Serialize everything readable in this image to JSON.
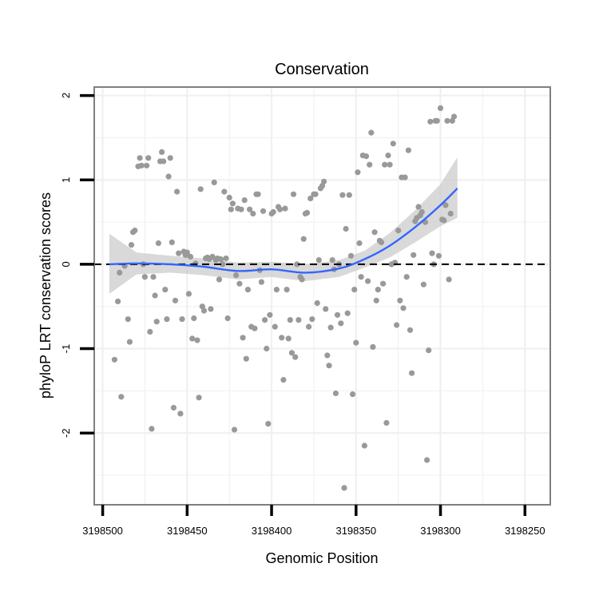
{
  "chart_data": {
    "type": "scatter",
    "title": "Conservation",
    "xlabel": "Genomic Position",
    "ylabel": "phyloP LRT conservation scores",
    "x_reversed": true,
    "xlim": [
      3198505,
      3198235
    ],
    "ylim": [
      -2.85,
      2.1
    ],
    "x_ticks": [
      3198500,
      3198450,
      3198400,
      3198350,
      3198300,
      3198250
    ],
    "x_tick_labels": [
      "3198500",
      "3198450",
      "3198400",
      "3198350",
      "3198300",
      "3198250"
    ],
    "y_ticks": [
      -2,
      -1,
      0,
      1,
      2
    ],
    "y_tick_labels": [
      "-2",
      "-1",
      "0",
      "1",
      "2"
    ],
    "grid": true,
    "legend": "none",
    "reference_line": {
      "y": 0,
      "style": "dashed",
      "color": "#000000"
    },
    "colors": {
      "points": "#999999",
      "smooth": "#3366ff",
      "band": "#cccccc",
      "panel_border": "#7f7f7f",
      "grid": "#f0f0f0"
    },
    "points": [
      [
        3198493,
        -1.13
      ],
      [
        3198491,
        -0.44
      ],
      [
        3198490,
        -0.1
      ],
      [
        3198489,
        -1.57
      ],
      [
        3198487,
        -0.02
      ],
      [
        3198485,
        -0.65
      ],
      [
        3198484,
        -0.92
      ],
      [
        3198483,
        0.23
      ],
      [
        3198482,
        0.38
      ],
      [
        3198481,
        0.4
      ],
      [
        3198479,
        1.16
      ],
      [
        3198478,
        1.26
      ],
      [
        3198477,
        1.17
      ],
      [
        3198476,
        0.0
      ],
      [
        3198475,
        -0.15
      ],
      [
        3198474,
        1.17
      ],
      [
        3198473,
        1.26
      ],
      [
        3198472,
        -0.8
      ],
      [
        3198471,
        -1.95
      ],
      [
        3198470,
        -0.15
      ],
      [
        3198469,
        -0.37
      ],
      [
        3198468,
        -0.68
      ],
      [
        3198467,
        0.25
      ],
      [
        3198466,
        1.22
      ],
      [
        3198465,
        1.33
      ],
      [
        3198464,
        1.22
      ],
      [
        3198463,
        -0.3
      ],
      [
        3198462,
        -0.65
      ],
      [
        3198461,
        1.04
      ],
      [
        3198460,
        1.26
      ],
      [
        3198459,
        0.26
      ],
      [
        3198458,
        -1.7
      ],
      [
        3198457,
        -0.43
      ],
      [
        3198456,
        0.86
      ],
      [
        3198455,
        0.13
      ],
      [
        3198454,
        -1.77
      ],
      [
        3198453,
        -0.65
      ],
      [
        3198452,
        0.15
      ],
      [
        3198451,
        0.11
      ],
      [
        3198450,
        0.14
      ],
      [
        3198449,
        -0.35
      ],
      [
        3198448,
        0.09
      ],
      [
        3198447,
        -0.88
      ],
      [
        3198446,
        -0.64
      ],
      [
        3198445,
        0.01
      ],
      [
        3198444,
        -0.9
      ],
      [
        3198443,
        -1.58
      ],
      [
        3198442,
        0.89
      ],
      [
        3198441,
        -0.5
      ],
      [
        3198440,
        -0.55
      ],
      [
        3198439,
        0.07
      ],
      [
        3198438,
        0.08
      ],
      [
        3198437,
        0.06
      ],
      [
        3198436,
        -0.53
      ],
      [
        3198435,
        0.09
      ],
      [
        3198434,
        0.97
      ],
      [
        3198433,
        0.05
      ],
      [
        3198432,
        0.07
      ],
      [
        3198431,
        -0.18
      ],
      [
        3198430,
        0.06
      ],
      [
        3198429,
        0.0
      ],
      [
        3198428,
        0.86
      ],
      [
        3198427,
        0.07
      ],
      [
        3198426,
        -0.64
      ],
      [
        3198425,
        0.79
      ],
      [
        3198424,
        0.65
      ],
      [
        3198423,
        0.72
      ],
      [
        3198422,
        -1.96
      ],
      [
        3198421,
        -0.13
      ],
      [
        3198420,
        0.66
      ],
      [
        3198419,
        -0.23
      ],
      [
        3198418,
        0.65
      ],
      [
        3198417,
        -0.87
      ],
      [
        3198416,
        0.76
      ],
      [
        3198415,
        -1.12
      ],
      [
        3198414,
        -0.3
      ],
      [
        3198413,
        0.65
      ],
      [
        3198412,
        -0.74
      ],
      [
        3198411,
        0.6
      ],
      [
        3198410,
        -0.76
      ],
      [
        3198409,
        0.83
      ],
      [
        3198408,
        0.83
      ],
      [
        3198407,
        -0.07
      ],
      [
        3198406,
        -0.21
      ],
      [
        3198405,
        0.63
      ],
      [
        3198404,
        -0.66
      ],
      [
        3198403,
        -1.0
      ],
      [
        3198402,
        -1.89
      ],
      [
        3198401,
        -0.6
      ],
      [
        3198400,
        0.6
      ],
      [
        3198399,
        0.62
      ],
      [
        3198398,
        -0.74
      ],
      [
        3198397,
        -0.3
      ],
      [
        3198396,
        0.68
      ],
      [
        3198395,
        0.65
      ],
      [
        3198394,
        -0.87
      ],
      [
        3198393,
        -1.37
      ],
      [
        3198392,
        0.66
      ],
      [
        3198391,
        -0.3
      ],
      [
        3198390,
        -0.88
      ],
      [
        3198389,
        -0.66
      ],
      [
        3198388,
        -1.05
      ],
      [
        3198387,
        0.83
      ],
      [
        3198386,
        -1.1
      ],
      [
        3198385,
        0.0
      ],
      [
        3198384,
        -0.66
      ],
      [
        3198383,
        -0.15
      ],
      [
        3198382,
        -0.18
      ],
      [
        3198381,
        0.3
      ],
      [
        3198380,
        0.6
      ],
      [
        3198379,
        0.61
      ],
      [
        3198378,
        -0.74
      ],
      [
        3198377,
        0.78
      ],
      [
        3198376,
        -0.65
      ],
      [
        3198375,
        0.83
      ],
      [
        3198374,
        0.83
      ],
      [
        3198373,
        -0.46
      ],
      [
        3198372,
        0.05
      ],
      [
        3198371,
        0.9
      ],
      [
        3198370,
        0.93
      ],
      [
        3198369,
        0.98
      ],
      [
        3198368,
        -0.53
      ],
      [
        3198367,
        -1.08
      ],
      [
        3198366,
        -1.2
      ],
      [
        3198365,
        -0.75
      ],
      [
        3198364,
        0.05
      ],
      [
        3198363,
        -0.06
      ],
      [
        3198362,
        -1.53
      ],
      [
        3198361,
        -0.6
      ],
      [
        3198360,
        0.0
      ],
      [
        3198359,
        -0.7
      ],
      [
        3198358,
        0.82
      ],
      [
        3198357,
        -2.65
      ],
      [
        3198356,
        0.42
      ],
      [
        3198355,
        -0.58
      ],
      [
        3198354,
        0.82
      ],
      [
        3198353,
        0.1
      ],
      [
        3198352,
        -1.54
      ],
      [
        3198351,
        -0.3
      ],
      [
        3198350,
        -0.93
      ],
      [
        3198349,
        1.09
      ],
      [
        3198348,
        0.25
      ],
      [
        3198347,
        -0.15
      ],
      [
        3198346,
        1.29
      ],
      [
        3198345,
        -2.15
      ],
      [
        3198344,
        1.28
      ],
      [
        3198343,
        -0.2
      ],
      [
        3198342,
        1.18
      ],
      [
        3198341,
        1.56
      ],
      [
        3198340,
        -0.98
      ],
      [
        3198339,
        0.38
      ],
      [
        3198338,
        -0.43
      ],
      [
        3198337,
        -0.3
      ],
      [
        3198336,
        0.28
      ],
      [
        3198335,
        0.26
      ],
      [
        3198334,
        -0.23
      ],
      [
        3198333,
        1.18
      ],
      [
        3198332,
        -1.88
      ],
      [
        3198331,
        1.29
      ],
      [
        3198330,
        1.18
      ],
      [
        3198329,
        0.0
      ],
      [
        3198328,
        1.43
      ],
      [
        3198327,
        0.02
      ],
      [
        3198326,
        -0.72
      ],
      [
        3198325,
        0.4
      ],
      [
        3198324,
        -0.43
      ],
      [
        3198323,
        1.03
      ],
      [
        3198322,
        -0.52
      ],
      [
        3198321,
        1.03
      ],
      [
        3198320,
        -0.15
      ],
      [
        3198319,
        1.35
      ],
      [
        3198318,
        -0.78
      ],
      [
        3198317,
        -1.29
      ],
      [
        3198316,
        0.11
      ],
      [
        3198315,
        0.51
      ],
      [
        3198314,
        0.55
      ],
      [
        3198313,
        0.68
      ],
      [
        3198312,
        0.58
      ],
      [
        3198311,
        0.62
      ],
      [
        3198310,
        -0.24
      ],
      [
        3198309,
        0.5
      ],
      [
        3198308,
        -2.32
      ],
      [
        3198307,
        -1.02
      ],
      [
        3198306,
        1.69
      ],
      [
        3198305,
        0.13
      ],
      [
        3198304,
        0.0
      ],
      [
        3198303,
        1.7
      ],
      [
        3198302,
        1.7
      ],
      [
        3198301,
        0.1
      ],
      [
        3198300,
        1.85
      ],
      [
        3198299,
        0.53
      ],
      [
        3198298,
        0.52
      ],
      [
        3198297,
        0.7
      ],
      [
        3198296,
        1.7
      ],
      [
        3198295,
        -0.18
      ],
      [
        3198294,
        0.6
      ],
      [
        3198293,
        1.7
      ],
      [
        3198292,
        1.75
      ]
    ],
    "smooth_curve": {
      "x": [
        3198496,
        3198480,
        3198460,
        3198440,
        3198420,
        3198400,
        3198380,
        3198360,
        3198345,
        3198330,
        3198315,
        3198300,
        3198290
      ],
      "y": [
        0.0,
        0.01,
        0.0,
        -0.03,
        -0.08,
        -0.06,
        -0.1,
        -0.05,
        0.06,
        0.22,
        0.44,
        0.7,
        0.9
      ]
    },
    "confidence_band": {
      "x": [
        3198496,
        3198480,
        3198460,
        3198440,
        3198420,
        3198400,
        3198380,
        3198360,
        3198345,
        3198330,
        3198315,
        3198300,
        3198290
      ],
      "lower": [
        -0.35,
        -0.12,
        -0.1,
        -0.13,
        -0.18,
        -0.15,
        -0.2,
        -0.15,
        -0.04,
        0.08,
        0.26,
        0.45,
        0.55
      ],
      "upper": [
        0.36,
        0.14,
        0.1,
        0.07,
        0.02,
        0.03,
        0.0,
        0.05,
        0.16,
        0.37,
        0.64,
        0.95,
        1.27
      ]
    }
  }
}
